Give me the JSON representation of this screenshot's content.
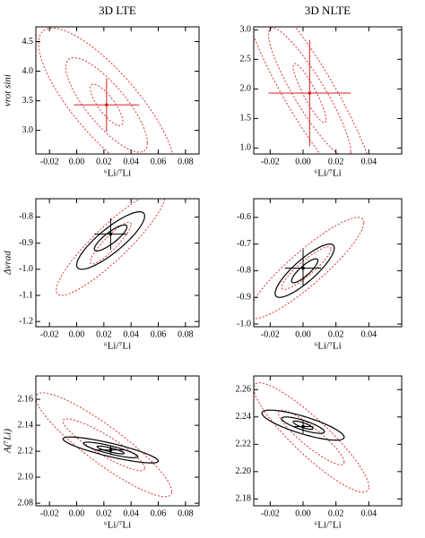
{
  "chart_data": [
    {
      "type": "contour",
      "title": "3D LTE",
      "xlabel": "⁶Li/⁷Li",
      "ylabel": "vrot sini",
      "xlim": [
        -0.03,
        0.09
      ],
      "xticks": [
        -0.02,
        {
          "value": 0,
          "label": "0.00"
        },
        0.02,
        0.04,
        0.06,
        0.08
      ],
      "ylim": [
        2.6,
        4.75
      ],
      "yticks": [
        {
          "value": 3,
          "label": "3.0"
        },
        3.5,
        {
          "value": 4,
          "label": "4.0"
        },
        4.5
      ],
      "point": {
        "x": 0.022,
        "y": 3.43,
        "xerr": 0.024,
        "yerr": 0.45,
        "color": "#d42020"
      },
      "contours": [
        {
          "cx": 0.022,
          "cy": 3.43,
          "sx": 0.012,
          "sy": 0.35,
          "rho": -0.8,
          "color": "#e03030",
          "dashed": true
        },
        {
          "cx": 0.022,
          "cy": 3.43,
          "sx": 0.03,
          "sy": 0.8,
          "rho": -0.8,
          "color": "#e03030",
          "dashed": true
        },
        {
          "cx": 0.022,
          "cy": 3.43,
          "sx": 0.05,
          "sy": 1.3,
          "rho": -0.8,
          "color": "#e03030",
          "dashed": true
        }
      ]
    },
    {
      "type": "contour",
      "title": "3D NLTE",
      "xlabel": "⁶Li/⁷Li",
      "xlim": [
        -0.03,
        0.06
      ],
      "xticks": [
        -0.02,
        {
          "value": 0,
          "label": "0.00"
        },
        0.02,
        0.04
      ],
      "ylim": [
        0.9,
        3.05
      ],
      "yticks": [
        {
          "value": 1,
          "label": "1.0"
        },
        1.5,
        {
          "value": 2,
          "label": "2.0"
        },
        2.5,
        {
          "value": 3,
          "label": "3.0"
        }
      ],
      "point": {
        "x": 0.004,
        "y": 1.93,
        "xerr": 0.025,
        "yerr": 0.9,
        "color": "#d42020"
      },
      "contours": [
        {
          "cx": 0.004,
          "cy": 1.93,
          "sx": 0.01,
          "sy": 0.5,
          "rho": -0.9,
          "color": "#e03030",
          "dashed": true
        },
        {
          "cx": 0.004,
          "cy": 1.93,
          "sx": 0.025,
          "sy": 1.1,
          "rho": -0.9,
          "color": "#e03030",
          "dashed": true
        },
        {
          "cx": 0.004,
          "cy": 1.93,
          "sx": 0.04,
          "sy": 1.8,
          "rho": -0.9,
          "color": "#e03030",
          "dashed": true
        }
      ]
    },
    {
      "type": "contour",
      "xlabel": "⁶Li/⁷Li",
      "ylabel": "Δvrad",
      "xlim": [
        -0.03,
        0.09
      ],
      "xticks": [
        -0.02,
        {
          "value": 0,
          "label": "0.00"
        },
        0.02,
        0.04,
        0.06,
        0.08
      ],
      "ylim": [
        -1.22,
        -0.73
      ],
      "yticks": [
        -0.8,
        -0.9,
        {
          "value": -1,
          "label": "-1.0"
        },
        -1.1,
        -1.2
      ],
      "point": {
        "x": 0.025,
        "y": -0.865,
        "xerr": 0.012,
        "yerr": 0.06,
        "color": "#000000"
      },
      "contours": [
        {
          "cx": 0.025,
          "cy": -0.9,
          "sx": 0.015,
          "sy": 0.08,
          "rho": 0.9,
          "color": "#e03030",
          "dashed": true
        },
        {
          "cx": 0.025,
          "cy": -0.9,
          "sx": 0.04,
          "sy": 0.2,
          "rho": 0.9,
          "color": "#e03030",
          "dashed": true
        },
        {
          "cx": 0.025,
          "cy": -0.88,
          "sx": 0.012,
          "sy": 0.05,
          "rho": 0.85,
          "color": "#000000",
          "dashed": false
        },
        {
          "cx": 0.025,
          "cy": -0.89,
          "sx": 0.025,
          "sy": 0.11,
          "rho": 0.85,
          "color": "#000000",
          "dashed": false
        }
      ]
    },
    {
      "type": "contour",
      "xlabel": "⁶Li/⁷Li",
      "xlim": [
        -0.03,
        0.06
      ],
      "xticks": [
        -0.02,
        {
          "value": 0,
          "label": "0.00"
        },
        0.02,
        0.04
      ],
      "ylim": [
        -1.01,
        -0.53
      ],
      "yticks": [
        -0.6,
        -0.7,
        -0.8,
        -0.9,
        {
          "value": -1,
          "label": "-1.0"
        }
      ],
      "point": {
        "x": 0,
        "y": -0.79,
        "xerr": 0.011,
        "yerr": 0.07,
        "color": "#000000"
      },
      "contours": [
        {
          "cx": 0.002,
          "cy": -0.79,
          "sx": 0.015,
          "sy": 0.08,
          "rho": 0.9,
          "color": "#e03030",
          "dashed": true
        },
        {
          "cx": 0.002,
          "cy": -0.79,
          "sx": 0.035,
          "sy": 0.19,
          "rho": 0.9,
          "color": "#e03030",
          "dashed": true
        },
        {
          "cx": 0.001,
          "cy": -0.8,
          "sx": 0.008,
          "sy": 0.045,
          "rho": 0.85,
          "color": "#000000",
          "dashed": false
        },
        {
          "cx": 0.001,
          "cy": -0.8,
          "sx": 0.018,
          "sy": 0.1,
          "rho": 0.85,
          "color": "#000000",
          "dashed": false
        }
      ]
    },
    {
      "type": "contour",
      "xlabel": "⁶Li/⁷Li",
      "ylabel": "A(⁷Li)",
      "xlim": [
        -0.03,
        0.09
      ],
      "xticks": [
        -0.02,
        {
          "value": 0,
          "label": "0.00"
        },
        0.02,
        0.04,
        0.06,
        0.08
      ],
      "ylim": [
        2.078,
        2.178
      ],
      "yticks": [
        2.08,
        {
          "value": 2.1,
          "label": "2.10"
        },
        2.12,
        2.14,
        2.16
      ],
      "point": {
        "x": 0.025,
        "y": 2.121,
        "xerr": 0.01,
        "yerr": 0.003,
        "color": "#000000"
      },
      "contours": [
        {
          "cx": 0.02,
          "cy": 2.125,
          "sx": 0.03,
          "sy": 0.02,
          "rho": -0.9,
          "color": "#e03030",
          "dashed": true
        },
        {
          "cx": 0.02,
          "cy": 2.125,
          "sx": 0.05,
          "sy": 0.04,
          "rho": -0.9,
          "color": "#e03030",
          "dashed": true
        },
        {
          "cx": 0.025,
          "cy": 2.121,
          "sx": 0.01,
          "sy": 0.003,
          "rho": -0.85,
          "color": "#000000",
          "dashed": false
        },
        {
          "cx": 0.025,
          "cy": 2.121,
          "sx": 0.02,
          "sy": 0.006,
          "rho": -0.85,
          "color": "#000000",
          "dashed": false
        },
        {
          "cx": 0.025,
          "cy": 2.121,
          "sx": 0.035,
          "sy": 0.01,
          "rho": -0.85,
          "color": "#000000",
          "dashed": false
        }
      ]
    },
    {
      "type": "contour",
      "xlabel": "⁶Li/⁷Li",
      "xlim": [
        -0.03,
        0.06
      ],
      "xticks": [
        -0.02,
        {
          "value": 0,
          "label": "0.00"
        },
        0.02,
        0.04
      ],
      "ylim": [
        2.175,
        2.27
      ],
      "yticks": [
        2.18,
        {
          "value": 2.2,
          "label": "2.20"
        },
        2.22,
        2.24,
        2.26
      ],
      "point": {
        "x": 0,
        "y": 2.233,
        "xerr": 0.006,
        "yerr": 0.005,
        "color": "#000000"
      },
      "contours": [
        {
          "cx": 0.005,
          "cy": 2.225,
          "sx": 0.02,
          "sy": 0.02,
          "rho": -0.9,
          "color": "#e03030",
          "dashed": true
        },
        {
          "cx": 0.005,
          "cy": 2.225,
          "sx": 0.035,
          "sy": 0.04,
          "rho": -0.9,
          "color": "#e03030",
          "dashed": true
        },
        {
          "cx": 0,
          "cy": 2.234,
          "sx": 0.006,
          "sy": 0.003,
          "rho": -0.8,
          "color": "#000000",
          "dashed": false
        },
        {
          "cx": 0,
          "cy": 2.234,
          "sx": 0.013,
          "sy": 0.006,
          "rho": -0.8,
          "color": "#000000",
          "dashed": false
        },
        {
          "cx": 0,
          "cy": 2.234,
          "sx": 0.025,
          "sy": 0.011,
          "rho": -0.8,
          "color": "#000000",
          "dashed": false
        }
      ]
    }
  ]
}
